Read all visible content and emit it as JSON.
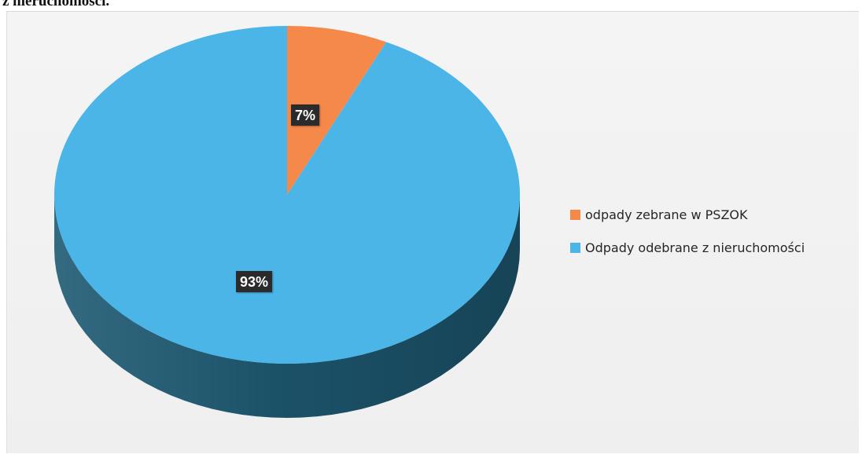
{
  "page": {
    "heading_fragment": "z nieruchomości."
  },
  "chart_data": {
    "type": "pie",
    "style": "3d",
    "title": "",
    "legend_position": "right",
    "series": [
      {
        "values": [
          7,
          93
        ],
        "labels": [
          "7%",
          "93%"
        ]
      }
    ],
    "categories": [
      "odpady zebrane w PSZOK",
      "Odpady odebrane z nieruchomości"
    ],
    "colors": [
      "#f5894a",
      "#4cb5e8"
    ],
    "side_colors": [
      "#c2672f",
      "#1e5a73"
    ]
  }
}
